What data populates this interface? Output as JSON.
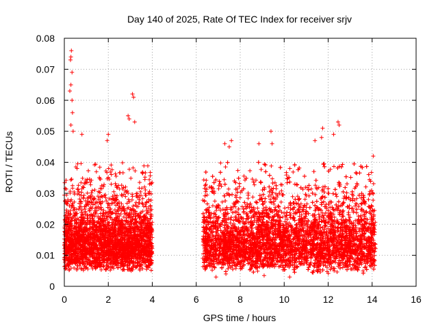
{
  "chart_data": {
    "type": "scatter",
    "title": "Day 140 of 2025, Rate Of TEC Index for receiver srjv",
    "xlabel": "GPS time / hours",
    "ylabel": "ROTI / TECUs",
    "xlim": [
      0,
      16
    ],
    "ylim": [
      0,
      0.08
    ],
    "x_ticks": [
      0,
      2,
      4,
      6,
      8,
      10,
      12,
      14,
      16
    ],
    "x_tick_labels": [
      "0",
      "2",
      "4",
      "6",
      "8",
      "10",
      "12",
      "14",
      "16"
    ],
    "y_ticks": [
      0,
      0.01,
      0.02,
      0.03,
      0.04,
      0.05,
      0.06,
      0.07,
      0.08
    ],
    "y_tick_labels": [
      "0",
      "0.01",
      "0.02",
      "0.03",
      "0.04",
      "0.05",
      "0.06",
      "0.07",
      "0.08"
    ],
    "grid": true,
    "marker": "plus",
    "color": "#ff0000",
    "segments": [
      {
        "x_start": 0.0,
        "x_end": 4.0,
        "typical_min": 0.005,
        "typical_max": 0.04
      },
      {
        "x_start": 6.3,
        "x_end": 14.15,
        "typical_min": 0.003,
        "typical_max": 0.04
      }
    ],
    "notable_points": [
      {
        "x": 0.32,
        "y": 0.076
      },
      {
        "x": 0.3,
        "y": 0.074
      },
      {
        "x": 0.28,
        "y": 0.073
      },
      {
        "x": 0.35,
        "y": 0.069
      },
      {
        "x": 0.3,
        "y": 0.065
      },
      {
        "x": 0.25,
        "y": 0.063
      },
      {
        "x": 0.35,
        "y": 0.06
      },
      {
        "x": 0.37,
        "y": 0.056
      },
      {
        "x": 0.3,
        "y": 0.052
      },
      {
        "x": 0.4,
        "y": 0.05
      },
      {
        "x": 0.8,
        "y": 0.049
      },
      {
        "x": 2.0,
        "y": 0.049
      },
      {
        "x": 1.95,
        "y": 0.047
      },
      {
        "x": 2.9,
        "y": 0.055
      },
      {
        "x": 2.95,
        "y": 0.054
      },
      {
        "x": 3.1,
        "y": 0.062
      },
      {
        "x": 3.15,
        "y": 0.061
      },
      {
        "x": 3.2,
        "y": 0.053
      },
      {
        "x": 7.6,
        "y": 0.047
      },
      {
        "x": 7.5,
        "y": 0.045
      },
      {
        "x": 7.3,
        "y": 0.046
      },
      {
        "x": 8.85,
        "y": 0.046
      },
      {
        "x": 9.4,
        "y": 0.05
      },
      {
        "x": 9.45,
        "y": 0.046
      },
      {
        "x": 11.4,
        "y": 0.047
      },
      {
        "x": 11.7,
        "y": 0.048
      },
      {
        "x": 11.75,
        "y": 0.051
      },
      {
        "x": 12.25,
        "y": 0.049
      },
      {
        "x": 12.45,
        "y": 0.053
      },
      {
        "x": 12.5,
        "y": 0.052
      },
      {
        "x": 14.05,
        "y": 0.042
      },
      {
        "x": 6.9,
        "y": 0.003
      },
      {
        "x": 10.25,
        "y": 0.003
      },
      {
        "x": 7.35,
        "y": 0.004
      },
      {
        "x": 11.5,
        "y": 0.005
      }
    ]
  }
}
